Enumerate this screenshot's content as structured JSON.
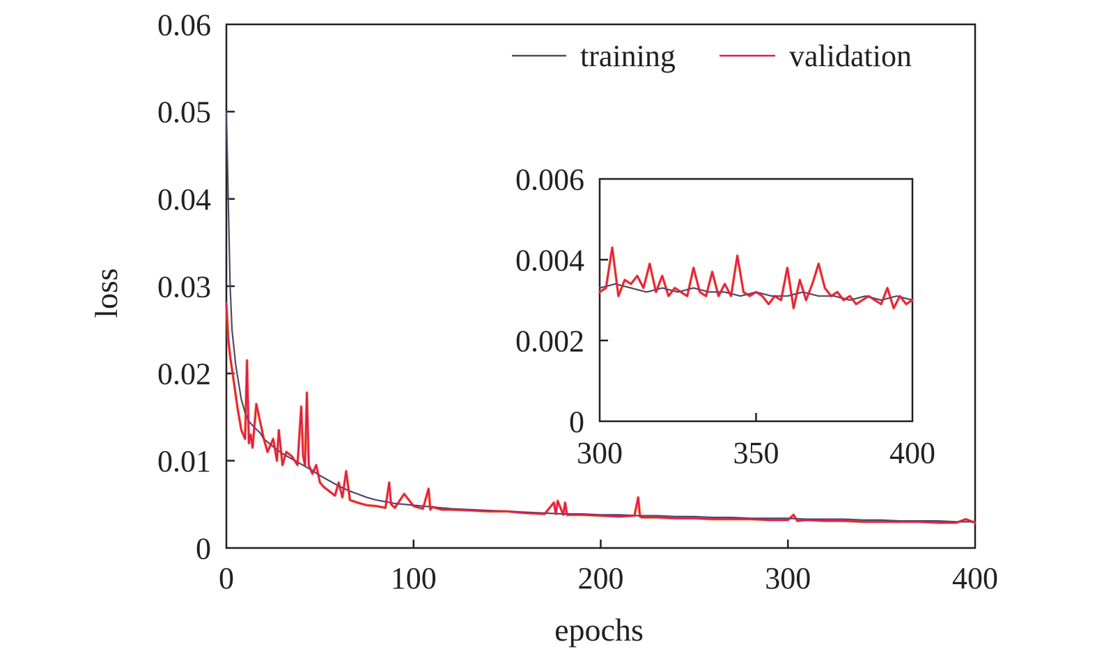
{
  "chart_data": [
    {
      "type": "line",
      "title": "",
      "xlabel": "epochs",
      "ylabel": "loss",
      "xlim": [
        0,
        400
      ],
      "ylim": [
        0,
        0.06
      ],
      "x_ticks": [
        "0",
        "100",
        "200",
        "300",
        "400"
      ],
      "y_ticks": [
        "0",
        "0.01",
        "0.02",
        "0.03",
        "0.04",
        "0.05",
        "0.06"
      ],
      "grid": false,
      "legend_position": "top-right",
      "colors": {
        "training": "#4a4a6a",
        "validation": "#e0195a",
        "highlight": "#ff7a00"
      },
      "series": [
        {
          "name": "training",
          "x": [
            0,
            1,
            2,
            3,
            5,
            8,
            10,
            12,
            15,
            18,
            20,
            25,
            30,
            35,
            40,
            45,
            50,
            55,
            60,
            65,
            70,
            75,
            80,
            85,
            90,
            95,
            100,
            105,
            110,
            115,
            120,
            130,
            140,
            150,
            160,
            170,
            180,
            190,
            200,
            210,
            220,
            230,
            240,
            250,
            260,
            270,
            280,
            290,
            300,
            310,
            320,
            330,
            340,
            350,
            360,
            370,
            380,
            390,
            400
          ],
          "y": [
            0.05,
            0.04,
            0.03,
            0.025,
            0.021,
            0.017,
            0.0155,
            0.0145,
            0.0138,
            0.0132,
            0.0125,
            0.0116,
            0.0108,
            0.0102,
            0.0096,
            0.009,
            0.0083,
            0.0077,
            0.0071,
            0.0066,
            0.0062,
            0.0058,
            0.0055,
            0.0053,
            0.0051,
            0.005,
            0.0049,
            0.0048,
            0.0047,
            0.0046,
            0.0045,
            0.0044,
            0.0043,
            0.0042,
            0.0041,
            0.004,
            0.0039,
            0.0039,
            0.0038,
            0.0038,
            0.0037,
            0.0037,
            0.0036,
            0.0036,
            0.0035,
            0.0035,
            0.0034,
            0.0034,
            0.0034,
            0.0033,
            0.0033,
            0.0033,
            0.0032,
            0.0032,
            0.0031,
            0.0031,
            0.0031,
            0.003,
            0.003
          ]
        },
        {
          "name": "validation",
          "x": [
            0,
            1,
            2,
            4,
            6,
            8,
            10,
            11,
            12,
            13,
            14,
            16,
            18,
            20,
            22,
            25,
            27,
            28,
            30,
            32,
            35,
            38,
            40,
            41,
            42,
            43,
            44,
            46,
            48,
            50,
            52,
            55,
            58,
            60,
            62,
            64,
            66,
            70,
            75,
            80,
            85,
            87,
            88,
            90,
            95,
            100,
            105,
            108,
            109,
            110,
            115,
            120,
            130,
            140,
            150,
            160,
            170,
            175,
            176,
            177,
            180,
            181,
            182,
            190,
            200,
            210,
            218,
            220,
            221,
            222,
            230,
            240,
            250,
            260,
            270,
            280,
            290,
            300,
            303,
            305,
            310,
            320,
            330,
            340,
            350,
            360,
            370,
            380,
            390,
            395,
            400
          ],
          "y": [
            0.028,
            0.024,
            0.022,
            0.019,
            0.016,
            0.0135,
            0.0125,
            0.0215,
            0.012,
            0.013,
            0.0115,
            0.0165,
            0.0145,
            0.0125,
            0.011,
            0.0125,
            0.01,
            0.0135,
            0.0095,
            0.011,
            0.0105,
            0.0095,
            0.0162,
            0.0105,
            0.0095,
            0.0178,
            0.0095,
            0.0085,
            0.0095,
            0.0075,
            0.007,
            0.0065,
            0.006,
            0.0075,
            0.0058,
            0.0088,
            0.0055,
            0.0052,
            0.0049,
            0.0048,
            0.0046,
            0.0075,
            0.005,
            0.0046,
            0.0062,
            0.0048,
            0.0045,
            0.0068,
            0.0044,
            0.0047,
            0.0044,
            0.0044,
            0.0043,
            0.0042,
            0.0042,
            0.004,
            0.0039,
            0.0052,
            0.0039,
            0.0054,
            0.0038,
            0.0052,
            0.0038,
            0.0038,
            0.0037,
            0.0036,
            0.0037,
            0.0058,
            0.0036,
            0.0035,
            0.0035,
            0.0034,
            0.0034,
            0.0033,
            0.0033,
            0.0033,
            0.0032,
            0.0032,
            0.0038,
            0.0031,
            0.0032,
            0.0031,
            0.0031,
            0.003,
            0.003,
            0.003,
            0.003,
            0.0029,
            0.0029,
            0.0033,
            0.0029
          ]
        }
      ]
    },
    {
      "type": "line",
      "title": "",
      "xlabel": "",
      "ylabel": "",
      "xlim": [
        300,
        400
      ],
      "ylim": [
        0,
        0.006
      ],
      "x_ticks": [
        "300",
        "350",
        "400"
      ],
      "y_ticks": [
        "0",
        "0.002",
        "0.004",
        "0.006"
      ],
      "grid": false,
      "legend_position": "none",
      "series": [
        {
          "name": "training",
          "x": [
            300,
            305,
            310,
            315,
            320,
            325,
            330,
            335,
            340,
            345,
            350,
            355,
            360,
            365,
            370,
            375,
            380,
            385,
            390,
            395,
            400
          ],
          "y": [
            0.0033,
            0.0034,
            0.0033,
            0.0032,
            0.0033,
            0.0032,
            0.0033,
            0.0032,
            0.0032,
            0.0031,
            0.0032,
            0.0031,
            0.0031,
            0.0032,
            0.0031,
            0.0031,
            0.003,
            0.0031,
            0.003,
            0.0031,
            0.003
          ]
        },
        {
          "name": "validation",
          "x": [
            300,
            302,
            304,
            306,
            308,
            310,
            312,
            314,
            316,
            318,
            320,
            322,
            324,
            326,
            328,
            330,
            332,
            334,
            336,
            338,
            340,
            342,
            344,
            346,
            348,
            350,
            352,
            354,
            356,
            358,
            360,
            362,
            364,
            366,
            368,
            370,
            372,
            374,
            376,
            378,
            380,
            382,
            384,
            386,
            388,
            390,
            392,
            394,
            396,
            398,
            400
          ],
          "y": [
            0.0032,
            0.0033,
            0.0043,
            0.0031,
            0.0035,
            0.0034,
            0.0036,
            0.0033,
            0.0039,
            0.0032,
            0.0036,
            0.0031,
            0.0033,
            0.0032,
            0.0031,
            0.0038,
            0.0032,
            0.0031,
            0.0037,
            0.0031,
            0.0034,
            0.0031,
            0.0041,
            0.0032,
            0.0031,
            0.0032,
            0.0031,
            0.0029,
            0.0031,
            0.003,
            0.0038,
            0.0028,
            0.0035,
            0.003,
            0.0034,
            0.0039,
            0.0033,
            0.0031,
            0.0032,
            0.003,
            0.0031,
            0.0029,
            0.003,
            0.0031,
            0.003,
            0.0029,
            0.0033,
            0.0028,
            0.0031,
            0.0029,
            0.003
          ]
        }
      ]
    }
  ]
}
